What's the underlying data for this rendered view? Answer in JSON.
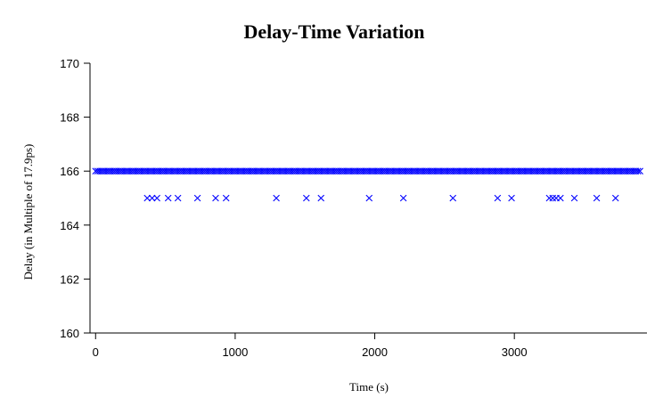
{
  "chart_data": {
    "type": "scatter",
    "title": "Delay-Time Variation",
    "xlabel": "Time (s)",
    "ylabel": "Delay (in Multiple of 17.9ps)",
    "xlim": [
      -40,
      3950
    ],
    "ylim": [
      160,
      170
    ],
    "xticks": [
      0,
      1000,
      2000,
      3000
    ],
    "yticks": [
      160,
      162,
      164,
      166,
      168,
      170
    ],
    "marker": "x",
    "marker_color": "#0000ff",
    "grid": false,
    "series": [
      {
        "dense_run": {
          "x_start": 0,
          "x_end": 3900,
          "x_step": 15,
          "y": 166
        },
        "points": [
          [
            370,
            165
          ],
          [
            405,
            165
          ],
          [
            440,
            165
          ],
          [
            520,
            165
          ],
          [
            590,
            165
          ],
          [
            730,
            165
          ],
          [
            860,
            165
          ],
          [
            935,
            165
          ],
          [
            1295,
            165
          ],
          [
            1510,
            165
          ],
          [
            1615,
            165
          ],
          [
            1960,
            165
          ],
          [
            2205,
            165
          ],
          [
            2560,
            165
          ],
          [
            2880,
            165
          ],
          [
            2980,
            165
          ],
          [
            3250,
            165
          ],
          [
            3275,
            165
          ],
          [
            3300,
            165
          ],
          [
            3330,
            165
          ],
          [
            3430,
            165
          ],
          [
            3590,
            165
          ],
          [
            3725,
            165
          ]
        ]
      }
    ]
  }
}
